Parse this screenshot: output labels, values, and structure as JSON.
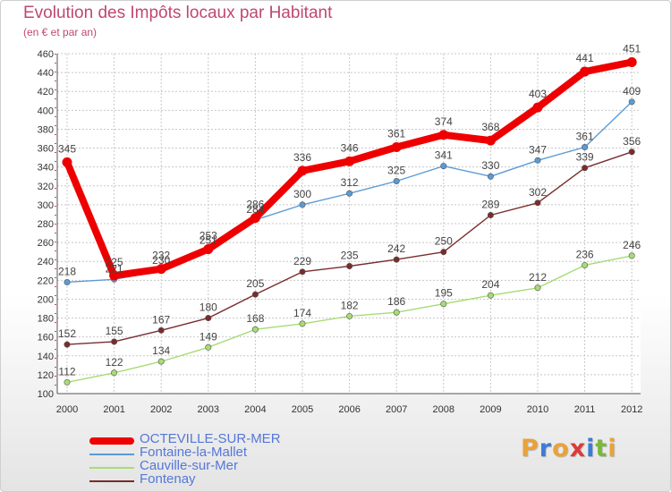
{
  "header": {
    "title": "Evolution des Impôts locaux par Habitant",
    "subtitle": "(en € et par an)"
  },
  "logo": {
    "text": "Proxiti",
    "colors": [
      "#e9a23b",
      "#3e7bd6",
      "#e9a23b",
      "#d93c3c",
      "#3e7bd6",
      "#7ab83a",
      "#e9a23b"
    ]
  },
  "chart_data": {
    "type": "line",
    "x": [
      "2000",
      "2001",
      "2002",
      "2003",
      "2004",
      "2005",
      "2006",
      "2007",
      "2008",
      "2009",
      "2010",
      "2011",
      "2012"
    ],
    "ylim": [
      100,
      460
    ],
    "yticks": [
      100,
      120,
      140,
      160,
      180,
      200,
      220,
      240,
      260,
      280,
      300,
      320,
      340,
      360,
      380,
      400,
      420,
      440,
      460
    ],
    "grid": true,
    "legend_position": "bottom-left",
    "series": [
      {
        "name": "OCTEVILLE-SUR-MER",
        "color": "#ee0000",
        "emphasis": true,
        "values": [
          345,
          225,
          232,
          253,
          286,
          336,
          346,
          361,
          374,
          368,
          403,
          441,
          451
        ]
      },
      {
        "name": "Fontaine-la-Mallet",
        "color": "#5b9bd5",
        "emphasis": false,
        "values": [
          218,
          221,
          230,
          251,
          284,
          300,
          312,
          325,
          341,
          330,
          347,
          361,
          409
        ]
      },
      {
        "name": "Cauville-sur-Mer",
        "color": "#a6dc74",
        "emphasis": false,
        "values": [
          112,
          122,
          134,
          149,
          168,
          174,
          182,
          186,
          195,
          204,
          212,
          236,
          246
        ]
      },
      {
        "name": "Fontenay",
        "color": "#7a2c2c",
        "emphasis": false,
        "values": [
          152,
          155,
          167,
          180,
          205,
          229,
          235,
          242,
          250,
          289,
          302,
          339,
          356
        ]
      }
    ]
  }
}
